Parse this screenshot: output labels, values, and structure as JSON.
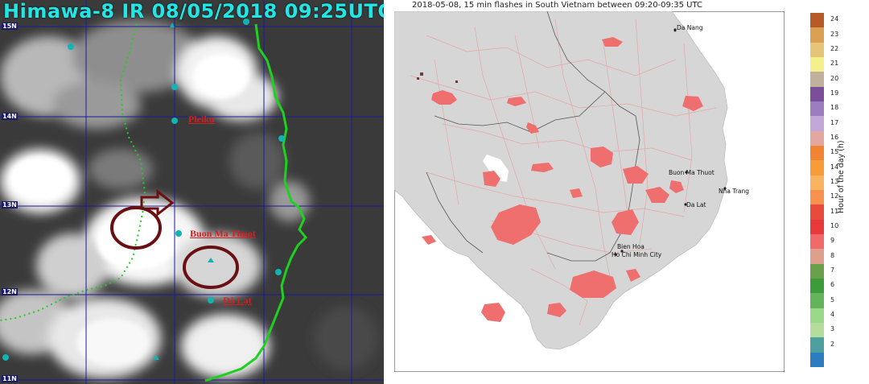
{
  "satellite": {
    "title": "Himawa-8 IR 08/05/2018 09:25UTC",
    "latitudes": [
      "15N",
      "14N",
      "13N",
      "12N",
      "11N"
    ],
    "cities": [
      "Pleiku",
      "Buon Ma Thuot",
      "Đà Lạt"
    ],
    "colors": {
      "title": "#22e6e6",
      "grid": "#1a1aa0",
      "border": "#20d020",
      "city": "#d42020",
      "marker": "#12b3b3",
      "circle": "#6a0f12"
    }
  },
  "lightning_map": {
    "title": "2018-05-08, 15 min flashes in South Vietnam  between 09:20-09:35 UTC",
    "places": [
      "Da Nang",
      "Buon Ma Thuot",
      "Nha Trang",
      "Da Lat",
      "Bien Hoa",
      "Ho Chi Minh City"
    ],
    "colors": {
      "land": "#d6d6d6",
      "sea": "#ffffff",
      "flash": "#ef6e6e",
      "roads": "#e6a6a6",
      "border": "#555555"
    }
  },
  "colorbar": {
    "title": "Hour of the day (h)",
    "ticks": [
      "24",
      "23",
      "22",
      "21",
      "20",
      "19",
      "18",
      "17",
      "16",
      "15",
      "14",
      "13",
      "12",
      "11",
      "10",
      "9",
      "8",
      "7",
      "6",
      "5",
      "4",
      "3",
      "2"
    ],
    "colors": [
      "#b85a28",
      "#d8a050",
      "#e6c478",
      "#f4f08c",
      "#c0b09c",
      "#7a4e98",
      "#9c7ec0",
      "#c2a8d8",
      "#e2a8a0",
      "#f08430",
      "#f89c38",
      "#fab460",
      "#f89050",
      "#e84a3c",
      "#e83a3a",
      "#f06a6a",
      "#dca08c",
      "#6aa04c",
      "#3c9c3c",
      "#64b45c",
      "#9ad88a",
      "#b4dc9c",
      "#4ca0a0",
      "#2c7cc0"
    ]
  }
}
